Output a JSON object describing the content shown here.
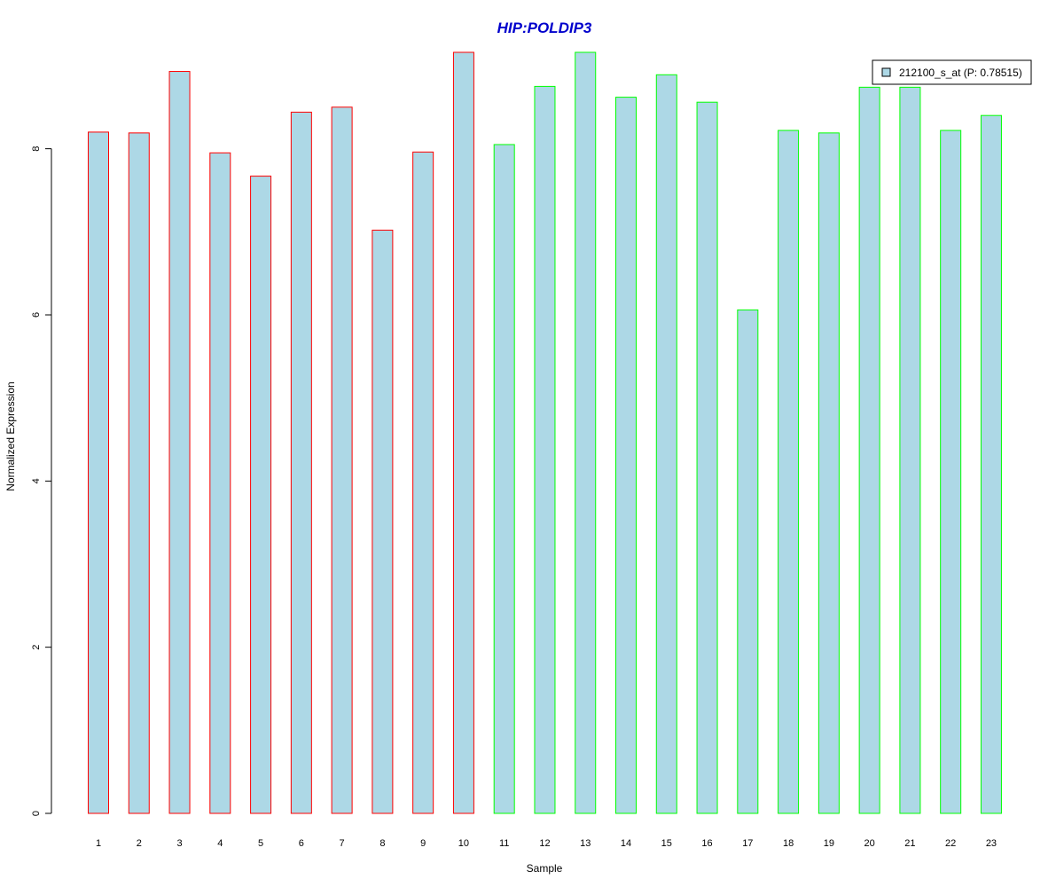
{
  "chart_data": {
    "type": "bar",
    "title": "HIP:POLDIP3",
    "xlabel": "Sample",
    "ylabel": "Normalized Expression",
    "categories": [
      "1",
      "2",
      "3",
      "4",
      "5",
      "6",
      "7",
      "8",
      "9",
      "10",
      "11",
      "12",
      "13",
      "14",
      "15",
      "16",
      "17",
      "18",
      "19",
      "20",
      "21",
      "22",
      "23"
    ],
    "series": [
      {
        "name": "212100_s_at (P: 0.78515)",
        "values": [
          8.2,
          8.19,
          8.93,
          7.95,
          7.67,
          8.44,
          8.5,
          7.02,
          7.96,
          9.16,
          8.05,
          8.75,
          9.16,
          8.62,
          8.89,
          8.56,
          6.06,
          8.22,
          8.19,
          8.74,
          8.74,
          8.22,
          8.4
        ]
      }
    ],
    "group_a_count": 10,
    "yticks": [
      0,
      2,
      4,
      6,
      8
    ],
    "ylim": [
      0,
      9.16
    ],
    "grid": false,
    "legend_position": "top-right",
    "colors": {
      "fill": "#add8e6",
      "border_group_a": "#ff0000",
      "border_group_b": "#00ff00",
      "title": "#0000cc"
    }
  }
}
